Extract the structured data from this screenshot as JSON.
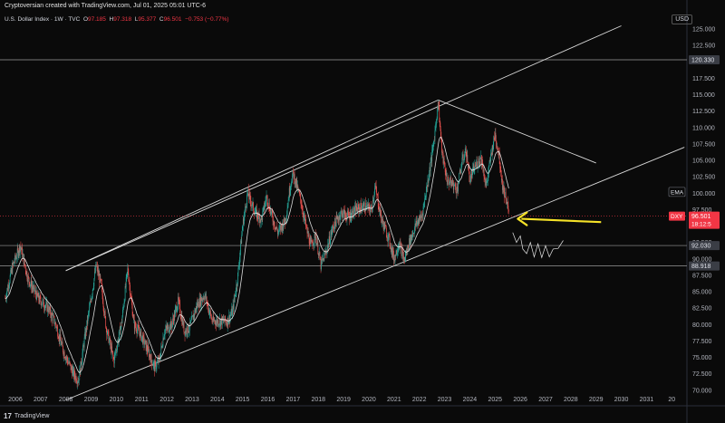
{
  "header": {
    "credit": "Cryptoversian created with TradingView.com, Jul 01, 2025 05:01 UTC-6",
    "symbol": "U.S. Dollar Index · 1W · TVC",
    "o_label": "O",
    "o_value": "97.185",
    "h_label": "H",
    "h_value": "97.318",
    "l_label": "L",
    "l_value": "95.377",
    "c_label": "C",
    "c_value": "96.501",
    "change": "−0.753 (−0.77%)"
  },
  "currency_button": "USD",
  "footer": {
    "logo": "17",
    "brand": "TradingView"
  },
  "colors": {
    "up": "#26a69a",
    "down": "#ef5350",
    "ema": "#ffffff",
    "arrow": "#f5e228",
    "badge": "#f23645"
  },
  "chart_data": {
    "type": "candlestick",
    "xaxis_ticks": [
      "2006",
      "2007",
      "2008",
      "2009",
      "2010",
      "2011",
      "2012",
      "2013",
      "2014",
      "2015",
      "2016",
      "2017",
      "2018",
      "2019",
      "2020",
      "2021",
      "2022",
      "2023",
      "2024",
      "2025",
      "2026",
      "2027",
      "2028",
      "2029",
      "2030",
      "2031",
      "20"
    ],
    "yaxis_ticks": [
      "125.000",
      "122.500",
      "120.000",
      "117.500",
      "115.000",
      "112.500",
      "110.000",
      "107.500",
      "105.000",
      "102.500",
      "100.000",
      "97.500",
      "95.000",
      "92.500",
      "90.000",
      "87.500",
      "85.000",
      "82.500",
      "80.000",
      "77.500",
      "75.000",
      "72.500",
      "70.000"
    ],
    "ylim": [
      69,
      127.5
    ],
    "xlim": [
      2005.5,
      2032.6
    ],
    "price_series": [
      [
        2005.6,
        84
      ],
      [
        2005.9,
        89
      ],
      [
        2006.2,
        92
      ],
      [
        2006.5,
        87
      ],
      [
        2006.9,
        84
      ],
      [
        2007.3,
        82.5
      ],
      [
        2007.6,
        80
      ],
      [
        2007.9,
        76
      ],
      [
        2008.3,
        72.5
      ],
      [
        2008.5,
        71.5
      ],
      [
        2008.75,
        78
      ],
      [
        2009.0,
        84
      ],
      [
        2009.2,
        89
      ],
      [
        2009.4,
        86
      ],
      [
        2009.6,
        79.5
      ],
      [
        2009.9,
        74.5
      ],
      [
        2010.2,
        80
      ],
      [
        2010.45,
        88.5
      ],
      [
        2010.7,
        80
      ],
      [
        2010.9,
        79
      ],
      [
        2011.2,
        76.5
      ],
      [
        2011.5,
        73.5
      ],
      [
        2011.7,
        74.5
      ],
      [
        2011.9,
        79
      ],
      [
        2012.2,
        80
      ],
      [
        2012.45,
        83.5
      ],
      [
        2012.7,
        79
      ],
      [
        2012.9,
        79.5
      ],
      [
        2013.2,
        83
      ],
      [
        2013.5,
        84.5
      ],
      [
        2013.8,
        80.5
      ],
      [
        2014.1,
        80.5
      ],
      [
        2014.4,
        80.5
      ],
      [
        2014.6,
        82
      ],
      [
        2014.8,
        87
      ],
      [
        2015.0,
        95
      ],
      [
        2015.2,
        100
      ],
      [
        2015.5,
        97
      ],
      [
        2015.75,
        96
      ],
      [
        2015.95,
        99.5
      ],
      [
        2016.2,
        96
      ],
      [
        2016.4,
        94
      ],
      [
        2016.7,
        96
      ],
      [
        2016.9,
        101.5
      ],
      [
        2017.0,
        103
      ],
      [
        2017.3,
        99
      ],
      [
        2017.5,
        95
      ],
      [
        2017.7,
        92
      ],
      [
        2017.9,
        93.5
      ],
      [
        2018.1,
        89
      ],
      [
        2018.3,
        91
      ],
      [
        2018.6,
        95
      ],
      [
        2018.9,
        97
      ],
      [
        2019.2,
        96.5
      ],
      [
        2019.5,
        97.5
      ],
      [
        2019.8,
        98
      ],
      [
        2020.1,
        97.5
      ],
      [
        2020.25,
        101
      ],
      [
        2020.5,
        96
      ],
      [
        2020.8,
        93
      ],
      [
        2021.0,
        90
      ],
      [
        2021.2,
        92.5
      ],
      [
        2021.4,
        89.7
      ],
      [
        2021.6,
        92.5
      ],
      [
        2021.9,
        95.5
      ],
      [
        2022.1,
        96.5
      ],
      [
        2022.3,
        101
      ],
      [
        2022.55,
        107
      ],
      [
        2022.75,
        114
      ],
      [
        2022.9,
        106
      ],
      [
        2023.1,
        102
      ],
      [
        2023.3,
        101.5
      ],
      [
        2023.5,
        100.5
      ],
      [
        2023.7,
        105
      ],
      [
        2023.85,
        106.5
      ],
      [
        2024.0,
        102
      ],
      [
        2024.2,
        104
      ],
      [
        2024.45,
        105.5
      ],
      [
        2024.65,
        101
      ],
      [
        2024.85,
        106
      ],
      [
        2025.0,
        109
      ],
      [
        2025.15,
        106
      ],
      [
        2025.3,
        101
      ],
      [
        2025.45,
        99
      ],
      [
        2025.55,
        96.5
      ]
    ],
    "projection": [
      [
        2025.7,
        94
      ],
      [
        2025.85,
        92.5
      ],
      [
        2026.0,
        93.5
      ],
      [
        2026.1,
        91.5
      ],
      [
        2026.25,
        90.8
      ],
      [
        2026.4,
        92.5
      ],
      [
        2026.55,
        90.3
      ],
      [
        2026.7,
        92.3
      ],
      [
        2026.85,
        90.2
      ],
      [
        2027.0,
        92
      ],
      [
        2027.15,
        90.3
      ],
      [
        2027.3,
        91.5
      ],
      [
        2027.5,
        91.6
      ],
      [
        2027.7,
        92.8
      ]
    ],
    "channel_upper": [
      [
        2008.0,
        88.2
      ],
      [
        2030.0,
        125.5
      ]
    ],
    "channel_mid": [
      [
        2008.0,
        88.2
      ],
      [
        2022.75,
        114.2
      ]
    ],
    "channel_lower": [
      [
        2008.0,
        68.5
      ],
      [
        2032.5,
        107
      ]
    ],
    "descending_trendline": [
      [
        2022.75,
        114.2
      ],
      [
        2029.0,
        104.6
      ]
    ],
    "horizontal_levels": [
      {
        "y": 120.33,
        "label": "120.330"
      },
      {
        "y": 92.03,
        "label": "92.030"
      },
      {
        "y": 88.918,
        "label": "88.918"
      }
    ],
    "current_price": {
      "y": 96.501,
      "label": "DXY",
      "value": "96.501",
      "countdown": "18:12:5"
    },
    "ema_label": "EMA",
    "ema_badge_y": 100.2,
    "ema_value": "96.325",
    "arrow": {
      "from": [
        2029.2,
        95.6
      ],
      "to": [
        2025.9,
        96.1
      ]
    }
  }
}
